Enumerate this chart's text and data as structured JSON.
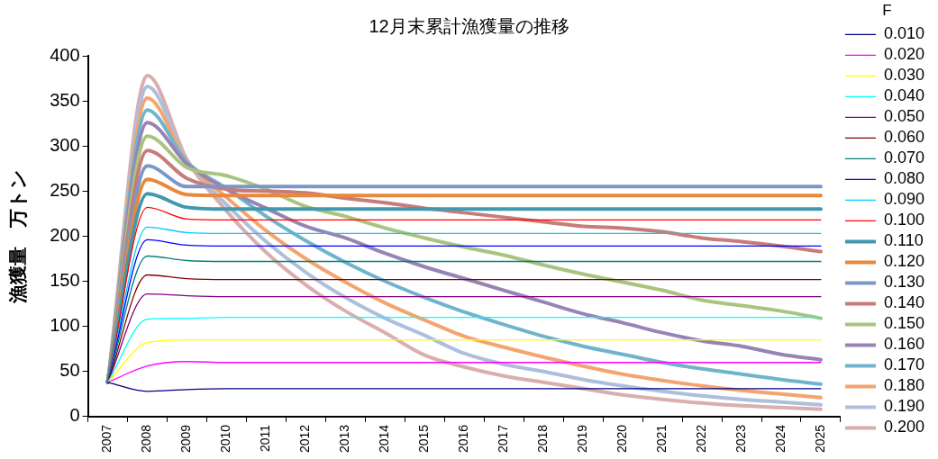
{
  "chart_data": {
    "type": "line",
    "title": "12月末累計漁獲量の推移",
    "ylabel": "漁獲量　万トン",
    "legend_title": "F",
    "legend": "right",
    "grid": false,
    "marker": "none",
    "line_style": "solid",
    "categories": [
      "2007",
      "2008",
      "2009",
      "2010",
      "2011",
      "2012",
      "2013",
      "2014",
      "2015",
      "2016",
      "2017",
      "2018",
      "2019",
      "2020",
      "2021",
      "2022",
      "2023",
      "2024",
      "2025"
    ],
    "ylim": [
      0,
      400
    ],
    "yticks": [
      0,
      50,
      100,
      150,
      200,
      250,
      300,
      350,
      400
    ],
    "series": [
      {
        "name": "0.010",
        "color": "#000080",
        "values": [
          38,
          28,
          30,
          31,
          31,
          31,
          31,
          31,
          31,
          31,
          31,
          31,
          31,
          31,
          31,
          31,
          31,
          31,
          31
        ]
      },
      {
        "name": "0.020",
        "color": "#ff00ff",
        "values": [
          38,
          56,
          61,
          60,
          60,
          60,
          60,
          60,
          60,
          60,
          60,
          60,
          60,
          60,
          60,
          60,
          60,
          60,
          60
        ]
      },
      {
        "name": "0.030",
        "color": "#ffff00",
        "values": [
          38,
          82,
          85,
          85,
          85,
          85,
          85,
          85,
          85,
          85,
          85,
          85,
          85,
          85,
          85,
          85,
          85,
          85,
          85
        ]
      },
      {
        "name": "0.040",
        "color": "#00ffff",
        "values": [
          38,
          108,
          109,
          110,
          110,
          110,
          110,
          110,
          110,
          110,
          110,
          110,
          110,
          110,
          110,
          110,
          110,
          110,
          110
        ]
      },
      {
        "name": "0.050",
        "color": "#800080",
        "values": [
          38,
          136,
          134,
          133,
          133,
          133,
          133,
          133,
          133,
          133,
          133,
          133,
          133,
          133,
          133,
          133,
          133,
          133,
          133
        ]
      },
      {
        "name": "0.060",
        "color": "#800000",
        "values": [
          38,
          157,
          153,
          152,
          152,
          152,
          152,
          152,
          152,
          152,
          152,
          152,
          152,
          152,
          152,
          152,
          152,
          152,
          152
        ]
      },
      {
        "name": "0.070",
        "color": "#008080",
        "values": [
          38,
          178,
          173,
          172,
          172,
          172,
          172,
          172,
          172,
          172,
          172,
          172,
          172,
          172,
          172,
          172,
          172,
          172,
          172
        ]
      },
      {
        "name": "0.080",
        "color": "#0000ff",
        "values": [
          38,
          196,
          190,
          189,
          189,
          189,
          189,
          189,
          189,
          189,
          189,
          189,
          189,
          189,
          189,
          189,
          189,
          189,
          189
        ]
      },
      {
        "name": "0.090",
        "color": "#00ccff",
        "values": [
          38,
          210,
          204,
          203,
          203,
          203,
          203,
          203,
          203,
          203,
          203,
          203,
          203,
          203,
          203,
          203,
          203,
          203,
          203
        ]
      },
      {
        "name": "0.100",
        "color": "#ff0000",
        "values": [
          38,
          232,
          219,
          218,
          218,
          218,
          218,
          218,
          218,
          218,
          218,
          218,
          218,
          218,
          218,
          218,
          218,
          218,
          218
        ]
      },
      {
        "name": "0.110",
        "color": "#4198af",
        "values": [
          38,
          247,
          232,
          230,
          230,
          230,
          230,
          230,
          230,
          230,
          230,
          230,
          230,
          230,
          230,
          230,
          230,
          230,
          230
        ]
      },
      {
        "name": "0.120",
        "color": "#e8883a",
        "values": [
          38,
          263,
          246,
          245,
          245,
          245,
          245,
          245,
          245,
          245,
          245,
          245,
          245,
          245,
          245,
          245,
          245,
          245,
          245
        ]
      },
      {
        "name": "0.130",
        "color": "#7b97c8",
        "values": [
          38,
          278,
          255,
          255,
          255,
          255,
          255,
          255,
          255,
          255,
          255,
          255,
          255,
          255,
          255,
          255,
          255,
          255,
          255
        ]
      },
      {
        "name": "0.140",
        "color": "#c77c7a",
        "values": [
          38,
          295,
          264,
          252,
          250,
          248,
          242,
          237,
          231,
          226,
          221,
          216,
          211,
          209,
          205,
          198,
          194,
          189,
          183
        ]
      },
      {
        "name": "0.150",
        "color": "#a9c47f",
        "values": [
          38,
          311,
          276,
          267,
          252,
          233,
          222,
          209,
          198,
          188,
          179,
          168,
          158,
          149,
          140,
          129,
          123,
          117,
          109
        ]
      },
      {
        "name": "0.160",
        "color": "#9883b5",
        "values": [
          38,
          326,
          280,
          252,
          231,
          211,
          198,
          181,
          166,
          153,
          140,
          127,
          114,
          104,
          93,
          84,
          78,
          69,
          63
        ]
      },
      {
        "name": "0.170",
        "color": "#6fb4cc",
        "values": [
          38,
          340,
          282,
          253,
          222,
          195,
          171,
          150,
          132,
          116,
          102,
          89,
          78,
          69,
          60,
          53,
          47,
          41,
          36
        ]
      },
      {
        "name": "0.180",
        "color": "#f4a46e",
        "values": [
          38,
          353,
          283,
          243,
          206,
          175,
          149,
          126,
          107,
          89,
          77,
          66,
          56,
          47,
          40,
          34,
          29,
          25,
          21
        ]
      },
      {
        "name": "0.190",
        "color": "#adbfdc",
        "values": [
          38,
          366,
          284,
          235,
          194,
          160,
          132,
          109,
          90,
          70,
          58,
          50,
          41,
          34,
          28,
          23,
          19,
          16,
          13
        ]
      },
      {
        "name": "0.200",
        "color": "#d9aeae",
        "values": [
          38,
          378,
          285,
          228,
          182,
          146,
          117,
          93,
          68,
          55,
          45,
          38,
          31,
          24,
          19,
          15,
          12,
          10,
          8
        ]
      }
    ]
  }
}
